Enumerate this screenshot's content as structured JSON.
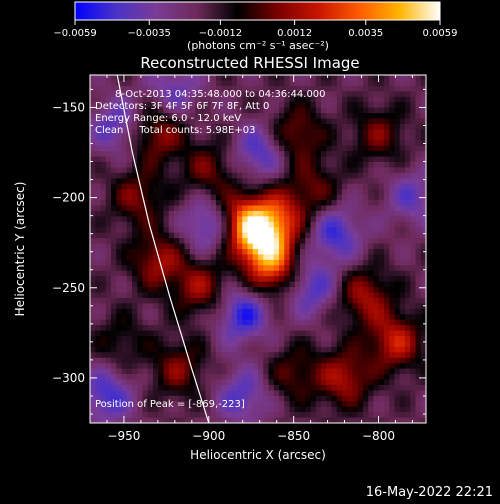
{
  "colorbar": {
    "ticks": [
      "-0.0059",
      "-0.0035",
      "-0.0012",
      "0.0012",
      "0.0035",
      "0.0059"
    ],
    "tick_values": [
      -0.0059,
      -0.0035,
      -0.0012,
      0.0012,
      0.0035,
      0.0059
    ],
    "range": [
      -0.0059,
      0.0059
    ],
    "unit_label": "(photons cm⁻² s⁻¹ asec⁻²)",
    "colormap": [
      "#0000ff",
      "#4a32c8",
      "#7a3c96",
      "#6e2a5a",
      "#000000",
      "#7a0000",
      "#c81400",
      "#ff5a00",
      "#ffb400",
      "#ffffff"
    ]
  },
  "header": {
    "title": "Reconstructed RHESSI Image"
  },
  "info": {
    "time_range": "8-Oct-2013 04:35:48.000 to 04:36:44.000",
    "detectors": "Detectors: 3F 4F 5F 6F 7F 8F, Att 0",
    "energy": "Energy Range: 6.0 - 12.0 keV",
    "method": "Clean     Total counts: 5.98E+03",
    "peak": "Position of Peak = [-869,-223]"
  },
  "footer": {
    "timestamp": "16-May-2022 22:21"
  },
  "chart_data": {
    "type": "heatmap",
    "title": "Reconstructed RHESSI Image",
    "xlabel": "Heliocentric X (arcsec)",
    "ylabel": "Heliocentric Y (arcsec)",
    "xlim": [
      -970,
      -772
    ],
    "ylim": [
      -325,
      -132
    ],
    "xticks": [
      -950,
      -900,
      -850,
      -800
    ],
    "yticks": [
      -150,
      -200,
      -250,
      -300
    ],
    "xtick_labels": [
      "−950",
      "−900",
      "−850",
      "−800"
    ],
    "ytick_labels": [
      "−150",
      "−200",
      "−250",
      "−300"
    ],
    "peak": [
      -869,
      -223
    ],
    "limb_curve": [
      [
        -954,
        -132
      ],
      [
        -945,
        -175
      ],
      [
        -935,
        -215
      ],
      [
        -923,
        -255
      ],
      [
        -910,
        -295
      ],
      [
        -900,
        -325
      ]
    ],
    "sources": [
      {
        "x": -869,
        "y": -223,
        "amplitude": 0.0059
      },
      {
        "x": -880,
        "y": -212,
        "amplitude": 0.004
      },
      {
        "x": -862,
        "y": -240,
        "amplitude": 0.0038
      },
      {
        "x": -858,
        "y": -210,
        "amplitude": 0.003
      },
      {
        "x": -905,
        "y": -250,
        "amplitude": 0.0028
      },
      {
        "x": -930,
        "y": -235,
        "amplitude": 0.003
      },
      {
        "x": -942,
        "y": -200,
        "amplitude": 0.0024
      },
      {
        "x": -930,
        "y": -165,
        "amplitude": 0.0028
      },
      {
        "x": -900,
        "y": -185,
        "amplitude": 0.0022
      },
      {
        "x": -848,
        "y": -165,
        "amplitude": 0.0026
      },
      {
        "x": -838,
        "y": -195,
        "amplitude": 0.002
      },
      {
        "x": -800,
        "y": -165,
        "amplitude": 0.0022
      },
      {
        "x": -808,
        "y": -255,
        "amplitude": 0.003
      },
      {
        "x": -790,
        "y": -280,
        "amplitude": 0.0036
      },
      {
        "x": -820,
        "y": -300,
        "amplitude": 0.0032
      },
      {
        "x": -850,
        "y": -298,
        "amplitude": 0.002
      },
      {
        "x": -918,
        "y": -295,
        "amplitude": 0.0024
      },
      {
        "x": -952,
        "y": -280,
        "amplitude": 0.0014
      },
      {
        "x": -900,
        "y": -215,
        "amplitude": -0.003
      },
      {
        "x": -880,
        "y": -265,
        "amplitude": -0.0034
      },
      {
        "x": -840,
        "y": -250,
        "amplitude": -0.0028
      },
      {
        "x": -825,
        "y": -220,
        "amplitude": -0.003
      },
      {
        "x": -870,
        "y": -175,
        "amplitude": -0.0028
      },
      {
        "x": -955,
        "y": -160,
        "amplitude": -0.0025
      },
      {
        "x": -960,
        "y": -310,
        "amplitude": -0.003
      },
      {
        "x": -880,
        "y": -310,
        "amplitude": -0.0026
      },
      {
        "x": -780,
        "y": -200,
        "amplitude": -0.0022
      },
      {
        "x": -920,
        "y": -140,
        "amplitude": -0.0022
      }
    ]
  }
}
